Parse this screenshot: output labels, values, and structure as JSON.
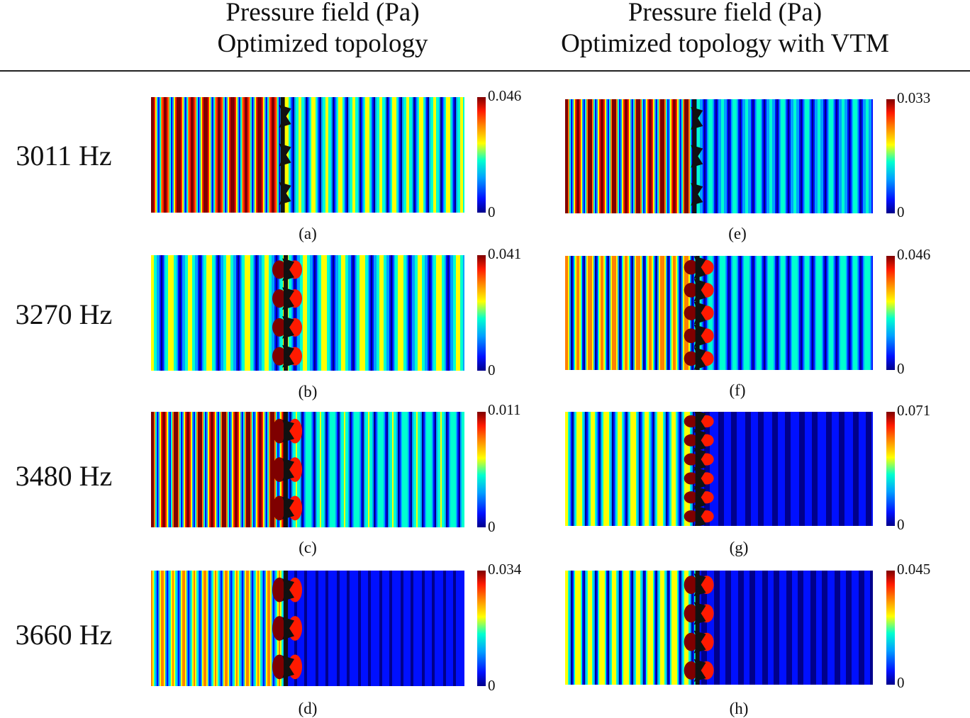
{
  "headers": {
    "left": {
      "line1": "Pressure field (Pa)",
      "line2": "Optimized topology"
    },
    "right": {
      "line1": "Pressure field (Pa)",
      "line2": "Optimized topology with VTM"
    }
  },
  "rows": [
    {
      "frequency": "3011 Hz"
    },
    {
      "frequency": "3270 Hz"
    },
    {
      "frequency": "3480 Hz"
    },
    {
      "frequency": "3660 Hz"
    }
  ],
  "panels": [
    {
      "label": "(a)",
      "cbar_max": "0.046",
      "cbar_min": "0"
    },
    {
      "label": "(b)",
      "cbar_max": "0.041",
      "cbar_min": "0"
    },
    {
      "label": "(c)",
      "cbar_max": "0.011",
      "cbar_min": "0"
    },
    {
      "label": "(d)",
      "cbar_max": "0.034",
      "cbar_min": "0"
    },
    {
      "label": "(e)",
      "cbar_max": "0.033",
      "cbar_min": "0"
    },
    {
      "label": "(f)",
      "cbar_max": "0.046",
      "cbar_min": "0"
    },
    {
      "label": "(g)",
      "cbar_max": "0.071",
      "cbar_min": "0"
    },
    {
      "label": "(h)",
      "cbar_max": "0.045",
      "cbar_min": "0"
    }
  ],
  "colormap": [
    "#00008b",
    "#0010ff",
    "#00a0ff",
    "#00ffd0",
    "#ffff00",
    "#ff8000",
    "#ff1a00",
    "#7f0000"
  ],
  "background_field_color": "#10129a",
  "scatterer_color": "#111111"
}
